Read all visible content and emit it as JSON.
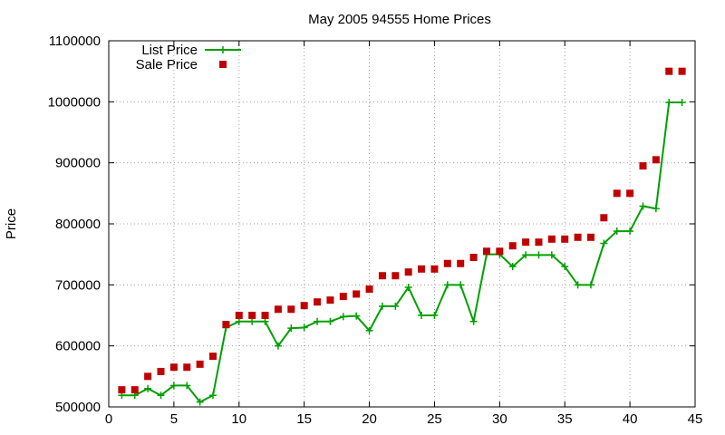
{
  "chart_data": {
    "type": "line",
    "title": "May 2005 94555 Home Prices",
    "xlabel": "",
    "ylabel": "Price",
    "xlim": [
      0,
      45
    ],
    "ylim": [
      500000,
      1100000
    ],
    "x_ticks": [
      "0",
      "5",
      "10",
      "15",
      "20",
      "25",
      "30",
      "35",
      "40",
      "45"
    ],
    "y_ticks": [
      "500000",
      "600000",
      "700000",
      "800000",
      "900000",
      "1000000",
      "1100000"
    ],
    "grid": true,
    "legend_position": "top-left",
    "x": [
      1,
      2,
      3,
      4,
      5,
      6,
      7,
      8,
      9,
      10,
      11,
      12,
      13,
      14,
      15,
      16,
      17,
      18,
      19,
      20,
      21,
      22,
      23,
      24,
      25,
      26,
      27,
      28,
      29,
      30,
      31,
      32,
      33,
      34,
      35,
      36,
      37,
      38,
      39,
      40,
      41,
      42,
      43,
      44
    ],
    "series": [
      {
        "name": "List Price",
        "style": "line-with-plus-markers",
        "color": "#00a000",
        "values": [
          519000,
          519000,
          530000,
          519000,
          535000,
          535000,
          508000,
          519000,
          630000,
          640000,
          640000,
          640000,
          600000,
          629000,
          630000,
          640000,
          640000,
          648000,
          649000,
          625000,
          665000,
          665000,
          696000,
          650000,
          650000,
          700000,
          700000,
          640000,
          750000,
          750000,
          730000,
          749000,
          749000,
          749000,
          730000,
          700000,
          700000,
          768000,
          788000,
          788000,
          829000,
          825000,
          999000,
          999000
        ]
      },
      {
        "name": "Sale Price",
        "style": "square-markers",
        "color": "#c00000",
        "values": [
          528000,
          528000,
          550000,
          558000,
          565000,
          565000,
          570000,
          583000,
          635000,
          650000,
          650000,
          650000,
          660000,
          660000,
          666000,
          672000,
          675000,
          681000,
          685000,
          693000,
          715000,
          715000,
          721000,
          726000,
          726000,
          735000,
          735000,
          745000,
          755000,
          755000,
          764000,
          770000,
          770000,
          775000,
          775000,
          778000,
          778000,
          810000,
          850000,
          850000,
          895000,
          905000,
          1050000,
          1050000
        ]
      }
    ]
  }
}
